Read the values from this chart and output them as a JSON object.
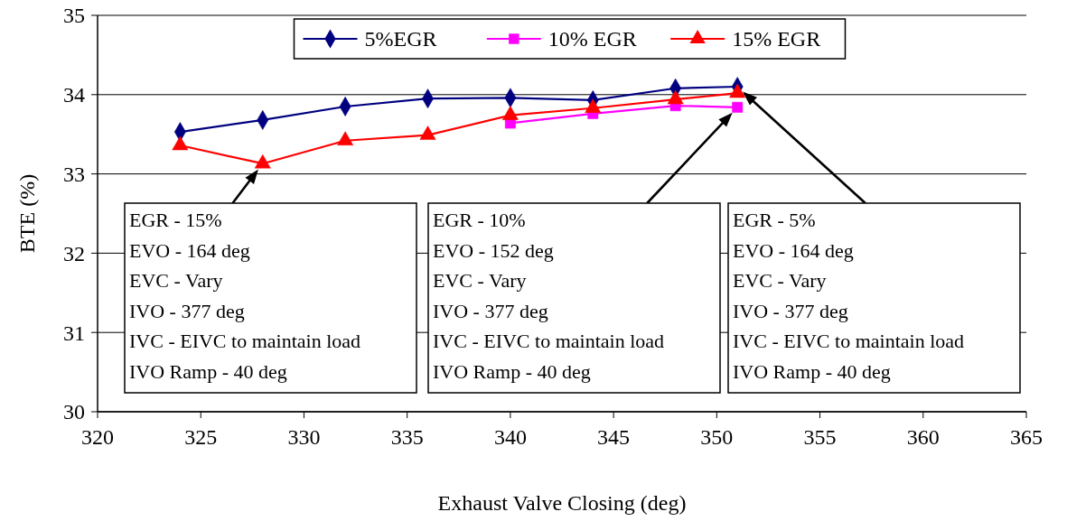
{
  "chart_data": {
    "type": "line",
    "xlabel": "Exhaust Valve Closing (deg)",
    "ylabel": "BTE (%)",
    "xlim": [
      320,
      365
    ],
    "xticks": [
      320,
      325,
      330,
      335,
      340,
      345,
      350,
      355,
      360,
      365
    ],
    "ylim": [
      30,
      35
    ],
    "yticks": [
      30,
      31,
      32,
      33,
      34,
      35
    ],
    "grid": "y",
    "legend": "top",
    "series": [
      {
        "name": "5%EGR",
        "color": "#000080",
        "marker": "diamond",
        "x": [
          324,
          328,
          332,
          336,
          340,
          344,
          348,
          351
        ],
        "values": [
          33.53,
          33.68,
          33.85,
          33.95,
          33.96,
          33.93,
          34.08,
          34.1
        ]
      },
      {
        "name": "10% EGR",
        "color": "#ff00ff",
        "marker": "square",
        "x": [
          340,
          344,
          348,
          351
        ],
        "values": [
          33.64,
          33.76,
          33.86,
          33.84
        ]
      },
      {
        "name": "15% EGR",
        "color": "#ff0000",
        "marker": "triangle",
        "x": [
          324,
          328,
          332,
          336,
          340,
          344,
          348,
          351
        ],
        "values": [
          33.36,
          33.13,
          33.42,
          33.49,
          33.74,
          33.83,
          33.94,
          34.02
        ]
      }
    ],
    "annotations": [
      "EGR - 15%\nEVO - 164 deg\nEVC - Vary\nIVO - 377 deg\nIVC - EIVC to maintain load\nIVO Ramp - 40 deg",
      "EGR - 10%\nEVO - 152 deg\nEVC - Vary\nIVO - 377 deg\nIVC - EIVC to maintain load\nIVO Ramp - 40 deg",
      "EGR - 5%\nEVO - 164 deg\nEVC - Vary\nIVO - 377 deg\nIVC - EIVC to maintain load\nIVO Ramp - 40 deg"
    ]
  }
}
